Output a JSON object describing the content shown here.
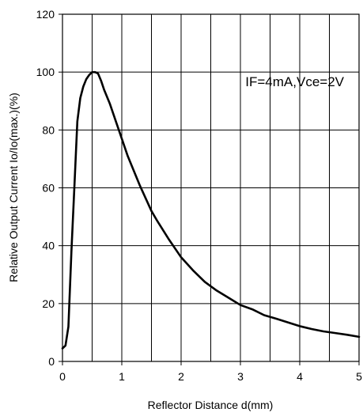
{
  "chart_data": {
    "type": "line",
    "title": "",
    "xlabel": "Reflector Distance d(mm)",
    "ylabel": "Relative Output Current Io/Io(max.)(%)",
    "xlim": [
      0,
      5
    ],
    "ylim": [
      0,
      120
    ],
    "x_ticks": [
      "0",
      "1",
      "2",
      "3",
      "4",
      "5"
    ],
    "y_ticks": [
      "0",
      "20",
      "40",
      "60",
      "80",
      "100",
      "120"
    ],
    "grid": true,
    "annotation": "IF=4mA,Vce=2V",
    "series": [
      {
        "color": "#000000",
        "x": [
          0,
          0.05,
          0.1,
          0.15,
          0.2,
          0.25,
          0.3,
          0.35,
          0.4,
          0.45,
          0.5,
          0.55,
          0.6,
          0.65,
          0.7,
          0.8,
          0.9,
          1.0,
          1.1,
          1.2,
          1.3,
          1.4,
          1.5,
          1.6,
          1.8,
          2.0,
          2.2,
          2.4,
          2.6,
          2.8,
          3.0,
          3.2,
          3.4,
          3.6,
          3.8,
          4.0,
          4.2,
          4.4,
          4.6,
          4.8,
          5.0
        ],
        "values": [
          4.5,
          5.5,
          12,
          38,
          60,
          83,
          91,
          95,
          97.5,
          99,
          100,
          100,
          99.5,
          97,
          94,
          89,
          83,
          77,
          71,
          66,
          61,
          56.5,
          52,
          48.5,
          42,
          36,
          31.5,
          27.5,
          24.5,
          22,
          19.5,
          18,
          16,
          14.8,
          13.5,
          12.2,
          11.2,
          10.4,
          9.8,
          9.2,
          8.5
        ]
      }
    ]
  }
}
